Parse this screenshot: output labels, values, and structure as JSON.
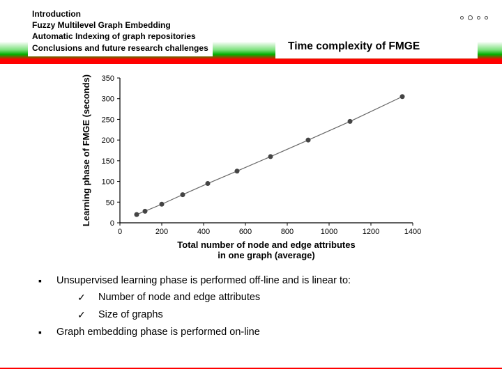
{
  "nav": {
    "items": [
      "Introduction",
      "Fuzzy Multilevel Graph Embedding",
      "Automatic Indexing of graph repositories",
      "Conclusions and future research challenges"
    ]
  },
  "title": "Time complexity of FMGE",
  "progress_dots": {
    "count": 4,
    "sizes": [
      5,
      7,
      5,
      5
    ]
  },
  "chart": {
    "type": "scatter-line",
    "xlabel": "Total number of node and edge attributes\nin one graph (average)",
    "ylabel": "Learning phase of FMGE (seconds)",
    "xlim": [
      0,
      1400
    ],
    "ylim": [
      0,
      350
    ],
    "xticks": [
      0,
      200,
      400,
      600,
      800,
      1000,
      1200,
      1400
    ],
    "yticks": [
      0,
      50,
      100,
      150,
      200,
      250,
      300,
      350
    ],
    "points": [
      {
        "x": 80,
        "y": 20
      },
      {
        "x": 120,
        "y": 28
      },
      {
        "x": 200,
        "y": 45
      },
      {
        "x": 300,
        "y": 68
      },
      {
        "x": 420,
        "y": 95
      },
      {
        "x": 560,
        "y": 125
      },
      {
        "x": 720,
        "y": 160
      },
      {
        "x": 900,
        "y": 200
      },
      {
        "x": 1100,
        "y": 245
      },
      {
        "x": 1350,
        "y": 305
      }
    ],
    "line_color": "#666666",
    "marker_color": "#444444",
    "marker_size": 3.5,
    "axis_color": "#000000",
    "background": "#ffffff",
    "label_fontsize": 13,
    "tick_fontsize": 11
  },
  "bullets": {
    "b1": "Unsupervised learning phase is performed off-line and is linear to:",
    "b1_sub1": "Number of node and edge attributes",
    "b1_sub2": "Size of graphs",
    "b2": "Graph embedding phase is performed on-line"
  }
}
